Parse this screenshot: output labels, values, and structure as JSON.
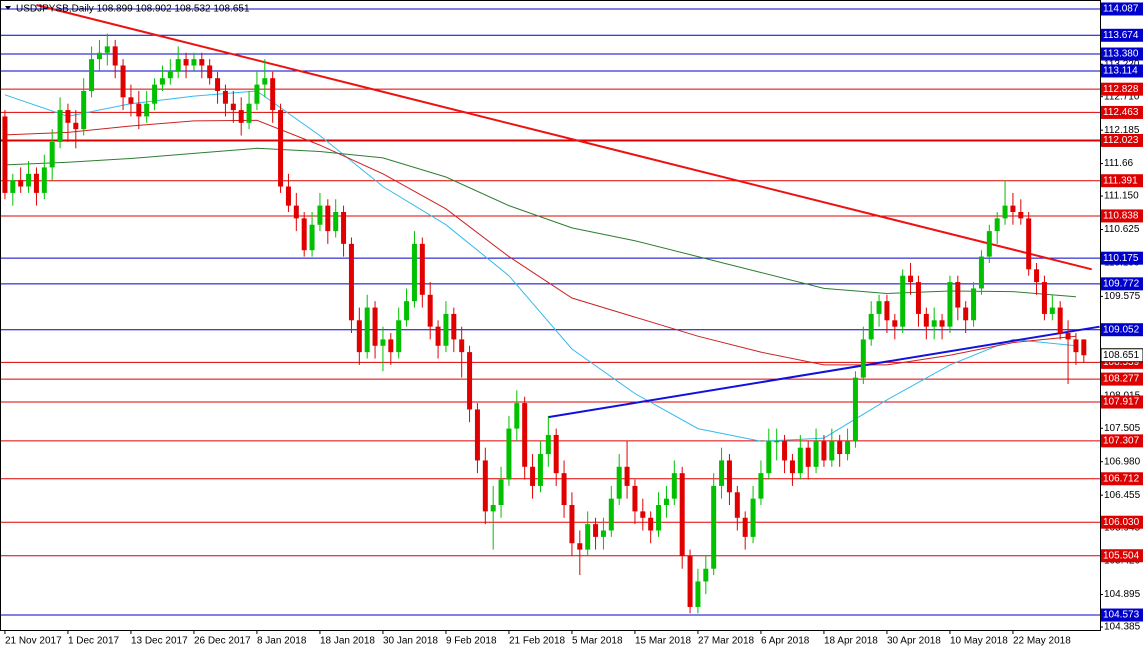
{
  "chart_data": {
    "type": "candlestick",
    "title": "USDJPYSB,Daily  108.899 108.902 108.532 108.651",
    "ylim": [
      104.338,
      114.228
    ],
    "yticks": [
      {
        "value": 113.22,
        "label": "113.220"
      },
      {
        "value": 112.71,
        "label": "112.710"
      },
      112.185,
      111.66,
      {
        "value": 111.15,
        "label": "111.150"
      },
      110.625,
      {
        "value": 110.1,
        "label": "110.100"
      },
      109.575,
      108.015,
      107.505,
      {
        "value": 106.98,
        "label": "106.980"
      },
      106.455,
      105.945,
      {
        "value": 105.42,
        "label": "105.420"
      },
      104.895,
      104.385
    ],
    "levels": [
      {
        "value": 114.087,
        "color": "#0000cc"
      },
      {
        "value": 113.674,
        "color": "#0000cc"
      },
      {
        "value": 113.38,
        "label": "113.380",
        "color": "#0000cc"
      },
      {
        "value": 113.114,
        "color": "#0000cc"
      },
      {
        "value": 112.828,
        "color": "#dd0000"
      },
      {
        "value": 112.463,
        "color": "#dd0000"
      },
      {
        "value": 112.023,
        "color": "#dd0000"
      },
      {
        "value": 111.391,
        "color": "#dd0000"
      },
      {
        "value": 110.838,
        "color": "#dd0000"
      },
      {
        "value": 110.175,
        "color": "#0000cc"
      },
      {
        "value": 109.772,
        "color": "#0000cc"
      },
      {
        "value": 109.052,
        "color": "#0000cc"
      },
      {
        "value": 108.539,
        "color": "#dd0000"
      },
      {
        "value": 108.277,
        "color": "#dd0000"
      },
      {
        "value": 107.917,
        "color": "#dd0000"
      },
      {
        "value": 107.307,
        "color": "#dd0000"
      },
      {
        "value": 106.712,
        "color": "#dd0000"
      },
      {
        "value": 106.03,
        "label": "106.030",
        "color": "#dd0000"
      },
      {
        "value": 105.504,
        "color": "#dd0000"
      },
      {
        "value": 104.573,
        "color": "#0000cc"
      }
    ],
    "current": 108.651,
    "up_color": "#00c000",
    "down_color": "#e00000",
    "categories": [
      "21 Nov 2017",
      null,
      null,
      null,
      null,
      null,
      null,
      null,
      "1 Dec 2017",
      null,
      null,
      null,
      null,
      null,
      null,
      null,
      "13 Dec 2017",
      null,
      null,
      null,
      null,
      null,
      null,
      null,
      "26 Dec 2017",
      null,
      null,
      null,
      null,
      null,
      null,
      null,
      "8 Jan 2018",
      null,
      null,
      null,
      null,
      null,
      null,
      null,
      "18 Jan 2018",
      null,
      null,
      null,
      null,
      null,
      null,
      null,
      "30 Jan 2018",
      null,
      null,
      null,
      null,
      null,
      null,
      null,
      "9 Feb 2018",
      null,
      null,
      null,
      null,
      null,
      null,
      null,
      "21 Feb 2018",
      null,
      null,
      null,
      null,
      null,
      null,
      null,
      "5 Mar 2018",
      null,
      null,
      null,
      null,
      null,
      null,
      null,
      "15 Mar 2018",
      null,
      null,
      null,
      null,
      null,
      null,
      null,
      "27 Mar 2018",
      null,
      null,
      null,
      null,
      null,
      null,
      null,
      "6 Apr 2018",
      null,
      null,
      null,
      null,
      null,
      null,
      null,
      "18 Apr 2018",
      null,
      null,
      null,
      null,
      null,
      null,
      null,
      "30 Apr 2018",
      null,
      null,
      null,
      null,
      null,
      null,
      null,
      "10 May 2018",
      null,
      null,
      null,
      null,
      null,
      null,
      null,
      "22 May 2018",
      null,
      null,
      null,
      null,
      null,
      null,
      null,
      null
    ],
    "candles": [
      [
        112.4,
        112.5,
        111.1,
        111.2
      ],
      [
        111.2,
        111.5,
        111.0,
        111.4
      ],
      [
        111.4,
        111.6,
        111.2,
        111.3
      ],
      [
        111.3,
        111.7,
        111.2,
        111.5
      ],
      [
        111.5,
        111.6,
        111.0,
        111.2
      ],
      [
        111.2,
        111.8,
        111.1,
        111.6
      ],
      [
        111.6,
        112.2,
        111.4,
        112.0
      ],
      [
        112.0,
        112.7,
        111.9,
        112.5
      ],
      [
        112.5,
        112.6,
        112.0,
        112.3
      ],
      [
        112.3,
        112.5,
        111.9,
        112.2
      ],
      [
        112.2,
        113.0,
        112.1,
        112.8
      ],
      [
        112.8,
        113.5,
        112.7,
        113.3
      ],
      [
        113.3,
        113.6,
        113.1,
        113.4
      ],
      [
        113.4,
        113.7,
        113.2,
        113.5
      ],
      [
        113.5,
        113.6,
        113.0,
        113.2
      ],
      [
        113.2,
        113.3,
        112.5,
        112.7
      ],
      [
        112.7,
        112.9,
        112.4,
        112.6
      ],
      [
        112.6,
        112.8,
        112.2,
        112.4
      ],
      [
        112.4,
        112.8,
        112.3,
        112.6
      ],
      [
        112.6,
        113.0,
        112.5,
        112.9
      ],
      [
        112.9,
        113.2,
        112.8,
        113.0
      ],
      [
        113.0,
        113.3,
        112.9,
        113.1
      ],
      [
        113.1,
        113.5,
        113.0,
        113.3
      ],
      [
        113.3,
        113.4,
        113.0,
        113.2
      ],
      [
        113.2,
        113.4,
        113.1,
        113.3
      ],
      [
        113.3,
        113.4,
        113.0,
        113.2
      ],
      [
        113.2,
        113.3,
        112.9,
        113.0
      ],
      [
        113.0,
        113.1,
        112.6,
        112.8
      ],
      [
        112.8,
        112.9,
        112.4,
        112.6
      ],
      [
        112.6,
        112.8,
        112.3,
        112.5
      ],
      [
        112.5,
        112.7,
        112.1,
        112.3
      ],
      [
        112.3,
        112.8,
        112.2,
        112.6
      ],
      [
        112.6,
        113.1,
        112.5,
        112.9
      ],
      [
        112.9,
        113.3,
        112.7,
        113.0
      ],
      [
        113.0,
        113.1,
        112.3,
        112.5
      ],
      [
        112.5,
        112.6,
        111.2,
        111.3
      ],
      [
        111.3,
        111.5,
        110.9,
        111.0
      ],
      [
        111.0,
        111.2,
        110.6,
        110.8
      ],
      [
        110.8,
        110.9,
        110.2,
        110.3
      ],
      [
        110.3,
        110.9,
        110.2,
        110.7
      ],
      [
        110.7,
        111.2,
        110.6,
        111.0
      ],
      [
        111.0,
        111.1,
        110.4,
        110.6
      ],
      [
        110.6,
        111.1,
        110.5,
        110.9
      ],
      [
        110.9,
        111.0,
        110.2,
        110.4
      ],
      [
        110.4,
        110.5,
        109.0,
        109.2
      ],
      [
        109.2,
        109.4,
        108.5,
        108.7
      ],
      [
        108.7,
        109.6,
        108.6,
        109.4
      ],
      [
        109.4,
        109.5,
        108.6,
        108.8
      ],
      [
        108.8,
        109.1,
        108.4,
        108.9
      ],
      [
        108.9,
        109.0,
        108.5,
        108.7
      ],
      [
        108.7,
        109.4,
        108.6,
        109.2
      ],
      [
        109.2,
        109.7,
        109.1,
        109.5
      ],
      [
        109.5,
        110.6,
        109.4,
        110.4
      ],
      [
        110.4,
        110.5,
        109.4,
        109.6
      ],
      [
        109.6,
        109.8,
        108.9,
        109.1
      ],
      [
        109.1,
        109.2,
        108.6,
        108.8
      ],
      [
        108.8,
        109.5,
        108.7,
        109.3
      ],
      [
        109.3,
        109.4,
        108.7,
        108.9
      ],
      [
        108.9,
        109.1,
        108.3,
        108.7
      ],
      [
        108.7,
        108.8,
        107.6,
        107.8
      ],
      [
        107.8,
        107.9,
        106.8,
        107.0
      ],
      [
        107.0,
        107.2,
        106.0,
        106.2
      ],
      [
        106.2,
        106.6,
        105.6,
        106.3
      ],
      [
        106.3,
        106.9,
        106.1,
        106.7
      ],
      [
        106.7,
        107.7,
        106.6,
        107.5
      ],
      [
        107.5,
        108.1,
        107.3,
        107.9
      ],
      [
        107.9,
        108.0,
        106.7,
        106.9
      ],
      [
        106.9,
        107.1,
        106.4,
        106.6
      ],
      [
        106.6,
        107.3,
        106.5,
        107.1
      ],
      [
        107.1,
        107.7,
        106.9,
        107.4
      ],
      [
        107.4,
        107.5,
        106.6,
        106.8
      ],
      [
        106.8,
        107.0,
        106.1,
        106.3
      ],
      [
        106.3,
        106.5,
        105.5,
        105.7
      ],
      [
        105.7,
        105.9,
        105.2,
        105.6
      ],
      [
        105.6,
        106.2,
        105.5,
        106.0
      ],
      [
        106.0,
        106.1,
        105.6,
        105.8
      ],
      [
        105.8,
        106.1,
        105.6,
        105.9
      ],
      [
        105.9,
        106.6,
        105.8,
        106.4
      ],
      [
        106.4,
        107.1,
        106.3,
        106.9
      ],
      [
        106.9,
        107.3,
        106.4,
        106.6
      ],
      [
        106.6,
        106.7,
        106.0,
        106.2
      ],
      [
        106.2,
        106.4,
        105.9,
        106.1
      ],
      [
        106.1,
        106.2,
        105.7,
        105.9
      ],
      [
        105.9,
        106.5,
        105.8,
        106.3
      ],
      [
        106.3,
        106.6,
        106.1,
        106.4
      ],
      [
        106.4,
        107.0,
        106.3,
        106.8
      ],
      [
        106.8,
        106.9,
        105.3,
        105.5
      ],
      [
        105.5,
        105.6,
        104.6,
        104.7
      ],
      [
        104.7,
        105.3,
        104.6,
        105.1
      ],
      [
        105.1,
        105.5,
        104.9,
        105.3
      ],
      [
        105.3,
        106.8,
        105.2,
        106.6
      ],
      [
        106.6,
        107.2,
        106.4,
        107.0
      ],
      [
        107.0,
        107.1,
        106.3,
        106.5
      ],
      [
        106.5,
        106.6,
        105.9,
        106.1
      ],
      [
        106.1,
        106.2,
        105.6,
        105.8
      ],
      [
        105.8,
        106.6,
        105.7,
        106.4
      ],
      [
        106.4,
        107.0,
        106.3,
        106.8
      ],
      [
        106.8,
        107.5,
        106.7,
        107.3
      ],
      [
        107.3,
        107.5,
        107.0,
        107.3
      ],
      [
        107.3,
        107.4,
        106.8,
        107.0
      ],
      [
        107.0,
        107.1,
        106.6,
        106.8
      ],
      [
        106.8,
        107.4,
        106.7,
        107.2
      ],
      [
        107.2,
        107.3,
        106.7,
        106.9
      ],
      [
        106.9,
        107.5,
        106.8,
        107.3
      ],
      [
        107.3,
        107.4,
        106.9,
        107.0
      ],
      [
        107.0,
        107.5,
        106.9,
        107.3
      ],
      [
        107.3,
        107.4,
        106.9,
        107.1
      ],
      [
        107.1,
        107.5,
        107.0,
        107.3
      ],
      [
        107.3,
        108.4,
        107.2,
        108.3
      ],
      [
        108.3,
        109.1,
        108.2,
        108.9
      ],
      [
        108.9,
        109.5,
        108.8,
        109.3
      ],
      [
        109.3,
        109.6,
        109.1,
        109.5
      ],
      [
        109.5,
        109.6,
        109.0,
        109.2
      ],
      [
        109.2,
        109.3,
        108.9,
        109.1
      ],
      [
        109.1,
        110.0,
        109.0,
        109.9
      ],
      [
        109.9,
        110.1,
        109.6,
        109.8
      ],
      [
        109.8,
        109.9,
        109.1,
        109.3
      ],
      [
        109.3,
        109.4,
        108.9,
        109.1
      ],
      [
        109.1,
        109.4,
        108.9,
        109.2
      ],
      [
        109.2,
        109.3,
        108.9,
        109.1
      ],
      [
        109.1,
        109.9,
        109.0,
        109.8
      ],
      [
        109.8,
        109.9,
        109.2,
        109.4
      ],
      [
        109.4,
        109.5,
        109.0,
        109.2
      ],
      [
        109.2,
        109.8,
        109.1,
        109.7
      ],
      [
        109.7,
        110.3,
        109.6,
        110.2
      ],
      [
        110.2,
        110.7,
        110.1,
        110.6
      ],
      [
        110.6,
        110.9,
        110.4,
        110.8
      ],
      [
        110.8,
        111.4,
        110.7,
        111.0
      ],
      [
        111.0,
        111.2,
        110.7,
        110.9
      ],
      [
        110.9,
        111.1,
        110.7,
        110.8
      ],
      [
        110.8,
        110.9,
        109.9,
        110.0
      ],
      [
        110.0,
        110.1,
        109.6,
        109.8
      ],
      [
        109.8,
        109.9,
        109.2,
        109.3
      ],
      [
        109.3,
        109.6,
        109.2,
        109.4
      ],
      [
        109.4,
        109.5,
        108.9,
        109.0
      ],
      [
        109.0,
        109.2,
        108.2,
        108.9
      ],
      [
        108.9,
        109.0,
        108.5,
        108.7
      ],
      [
        108.899,
        108.902,
        108.532,
        108.651
      ]
    ],
    "series": [
      {
        "color": "#33bbee",
        "x": [
          0,
          8,
          16,
          24,
          32,
          40,
          48,
          56,
          64,
          72,
          80,
          88,
          96,
          104,
          112,
          120,
          128,
          136
        ],
        "values": [
          112.74,
          112.4,
          112.6,
          112.72,
          112.8,
          112.1,
          111.3,
          110.7,
          109.9,
          108.75,
          108.05,
          107.5,
          107.3,
          107.35,
          107.95,
          108.5,
          108.9,
          108.8
        ]
      },
      {
        "color": "#cc2222",
        "x": [
          0,
          8,
          16,
          24,
          32,
          40,
          48,
          56,
          64,
          72,
          80,
          88,
          96,
          104,
          112,
          120,
          128,
          136
        ],
        "values": [
          112.11,
          112.15,
          112.25,
          112.33,
          112.34,
          111.95,
          111.5,
          110.95,
          110.2,
          109.55,
          109.25,
          108.95,
          108.7,
          108.5,
          108.5,
          108.65,
          108.85,
          108.95
        ]
      },
      {
        "color": "#2e7d32",
        "x": [
          0,
          8,
          16,
          24,
          32,
          40,
          48,
          56,
          64,
          72,
          80,
          88,
          96,
          104,
          112,
          120,
          128,
          136
        ],
        "values": [
          111.64,
          111.68,
          111.74,
          111.82,
          111.9,
          111.85,
          111.75,
          111.45,
          111.0,
          110.65,
          110.45,
          110.2,
          109.95,
          109.7,
          109.62,
          109.66,
          109.65,
          109.57
        ]
      },
      {
        "color": "#ee1111",
        "x": [
          4,
          138
        ],
        "values": [
          114.15,
          110.0
        ]
      },
      {
        "color": "#1111dd",
        "x": [
          69,
          139
        ],
        "values": [
          107.68,
          109.1
        ]
      }
    ]
  }
}
